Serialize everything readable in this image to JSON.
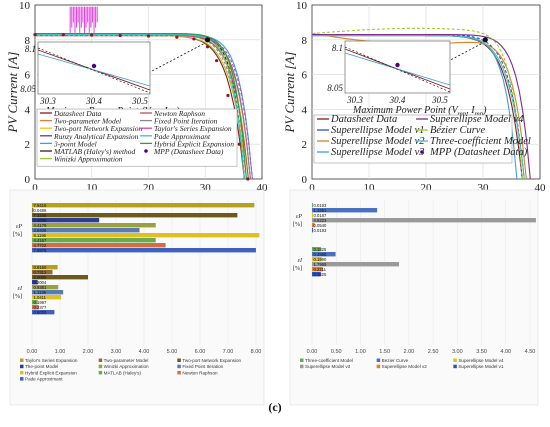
{
  "chart_data": [
    {
      "panel": "(a)",
      "type": "line",
      "xlabel": "PV Voltage [V]",
      "ylabel": "PV Current [A]",
      "xlim": [
        0,
        40
      ],
      "ylim": [
        0,
        10
      ],
      "xticks": [
        "0",
        "10",
        "20",
        "30",
        "40"
      ],
      "yticks": [
        "0",
        "2",
        "4",
        "6",
        "8",
        "10"
      ],
      "grid": true,
      "legend_position": "bottom-left",
      "series": [
        {
          "name": "Datasheet Data",
          "color": "#8b1a1a"
        },
        {
          "name": "Two-parameter Model",
          "color": "#e07b39"
        },
        {
          "name": "Two-port Network Expansion",
          "color": "#f5c400"
        },
        {
          "name": "Runzy Analytical Expansion",
          "color": "#7b2d8e"
        },
        {
          "name": "3-point Model",
          "color": "#3aa0d8"
        },
        {
          "name": "MATLAB (Haley's) method",
          "color": "#222222"
        },
        {
          "name": "Winizki Approximation",
          "color": "#9acd32"
        },
        {
          "name": "Newton Raphson",
          "color": "#c0504d"
        },
        {
          "name": "Fixed Point Iteration",
          "color": "#888888"
        },
        {
          "name": "Taylor's Series Expansion",
          "color": "#e040a0"
        },
        {
          "name": "Pade Approximant",
          "color": "#40c0c0"
        },
        {
          "name": "Hybrid Explicit Expansion",
          "color": "#20a050"
        },
        {
          "name": "MPP (Datasheet Data)",
          "color": "#4b0082"
        }
      ],
      "datasheet_points": {
        "x": [
          0,
          5,
          10,
          15,
          20,
          25,
          28,
          30.4,
          32,
          34,
          36,
          37.5
        ],
        "y": [
          8.3,
          8.29,
          8.27,
          8.25,
          8.22,
          8.15,
          8.05,
          7.6,
          6.8,
          4.8,
          2.0,
          0
        ]
      },
      "inset": {
        "label": "Maximum Power Point (V_mp, I_mp)",
        "xticks": [
          "30.3",
          "30.4",
          "30.5"
        ],
        "yticks": [
          "8.05",
          "8.1"
        ]
      }
    },
    {
      "panel": "(b)",
      "type": "line",
      "xlabel": "PV Voltage [V]",
      "ylabel": "PV Current [A]",
      "xlim": [
        0,
        40
      ],
      "ylim": [
        0,
        10
      ],
      "xticks": [
        "0",
        "10",
        "20",
        "30",
        "40"
      ],
      "yticks": [
        "0",
        "2",
        "4",
        "6",
        "8",
        "10"
      ],
      "grid": true,
      "legend_position": "bottom-left",
      "series": [
        {
          "name": "Datasheet Data",
          "color": "#8b1a1a"
        },
        {
          "name": "Superellipse Model v1",
          "color": "#3050c0"
        },
        {
          "name": "Superellipse Model v2",
          "color": "#e08020"
        },
        {
          "name": "Superellipse Model v3",
          "color": "#3aa0d8"
        },
        {
          "name": "Superellipse Model v4",
          "color": "#7b2d8e"
        },
        {
          "name": "Bézier Curve",
          "color": "#9acd32"
        },
        {
          "name": "Three-coefficient Model",
          "color": "#40c0c0"
        },
        {
          "name": "MPP (Datasheet Data)",
          "color": "#4b0082"
        }
      ],
      "inset": {
        "label": "Maximum Power Point (V_mp, I_mp)",
        "xticks": [
          "30.3",
          "30.4",
          "30.5"
        ],
        "yticks": [
          "8.05",
          "8.1"
        ]
      }
    },
    {
      "panel": "(c) left",
      "type": "bar",
      "orientation": "horizontal",
      "groups": [
        "εP [%]",
        "εI [%]"
      ],
      "xlim": [
        0,
        8
      ],
      "xticks": [
        "0.00",
        "1.00",
        "2.00",
        "3.00",
        "4.00",
        "5.00",
        "6.00",
        "7.00",
        "8.00"
      ],
      "series": [
        {
          "name": "Taylor's Series Expansion",
          "color": "#b5a020",
          "values": [
            7.9416,
            0.916
          ]
        },
        {
          "name": "Two-parameter Model",
          "color": "#8c6a3a",
          "values": [
            0.0486,
            0.7312
          ]
        },
        {
          "name": "Two-port Network Expansion",
          "color": "#6b5a1a",
          "values": [
            7.3346,
            2.0
          ]
        },
        {
          "name": "The-point Model",
          "color": "#2c3e8c",
          "values": [
            2.4,
            0.2004
          ]
        },
        {
          "name": "Winizki Approximation",
          "color": "#9aa040",
          "values": [
            4.4179,
            0.9381
          ]
        },
        {
          "name": "Fixed Point Iteration",
          "color": "#5a7ab0",
          "values": [
            3.8408,
            1.1136
          ]
        },
        {
          "name": "Hybrid Explicit Expansion",
          "color": "#e0c020",
          "values": [
            8.1196,
            1.0411
          ]
        },
        {
          "name": "MATLAB (Haley's)",
          "color": "#6aaa50",
          "values": [
            4.4167,
            0.1997
          ]
        },
        {
          "name": "Newton Raphson",
          "color": "#d07040",
          "values": [
            4.7722,
            0.2377
          ]
        },
        {
          "name": "Pade Approximant",
          "color": "#4060c0",
          "values": [
            7.9976,
            0.8
          ]
        }
      ],
      "data_labels": [
        "7.9416",
        "0.0486",
        "7.3346",
        "4.4179",
        "3.8408",
        "8.1196",
        "4.4167",
        "4.7722",
        "7.9976",
        "0.916",
        "0.2004",
        "0.9381",
        "1.1136",
        "1.0411",
        "0.1997",
        "0.2377"
      ]
    },
    {
      "panel": "(c) right",
      "type": "bar",
      "orientation": "horizontal",
      "groups": [
        "εP [%]",
        "εI [%]"
      ],
      "xlim": [
        0,
        4.5
      ],
      "xticks": [
        "0.00",
        "0.50",
        "1.00",
        "1.50",
        "2.00",
        "2.50",
        "3.00",
        "3.50",
        "4.00",
        "4.50"
      ],
      "series": [
        {
          "name": "Three-coefficient Model",
          "color": "#6aaa50",
          "values": [
            0.0193,
            0.1825
          ]
        },
        {
          "name": "Bezier Curve",
          "color": "#4a70c0",
          "values": [
            1.3451,
            0.4866
          ]
        },
        {
          "name": "Superellipse Model v4",
          "color": "#e0c020",
          "values": [
            0.0187,
            0.199
          ]
        },
        {
          "name": "Superellipse Model v3",
          "color": "#9a9a9a",
          "values": [
            4.6223,
            1.7969
          ]
        },
        {
          "name": "Superellipse Model v2",
          "color": "#e08020",
          "values": [
            0.054,
            0.2211
          ]
        },
        {
          "name": "Superellipse Model v1",
          "color": "#3050c0",
          "values": [
            0.0193,
            0.1825
          ]
        }
      ],
      "data_labels": [
        "0.0193",
        "1.3451",
        "0.0187",
        "4.6223",
        "0.0540",
        "0.0193",
        "0.1825",
        "0.4866",
        "0.1990",
        "1.7969",
        "0.2211",
        "0.1825"
      ]
    }
  ],
  "labels": {
    "a": "(a)",
    "b": "(b)",
    "c": "(c)",
    "ep": "εP",
    "ei": "εI",
    "pct": "[%]",
    "inset_label": "Maximum Power Point (V",
    "mp": "mp",
    "imp": ", I",
    "close": ")"
  }
}
